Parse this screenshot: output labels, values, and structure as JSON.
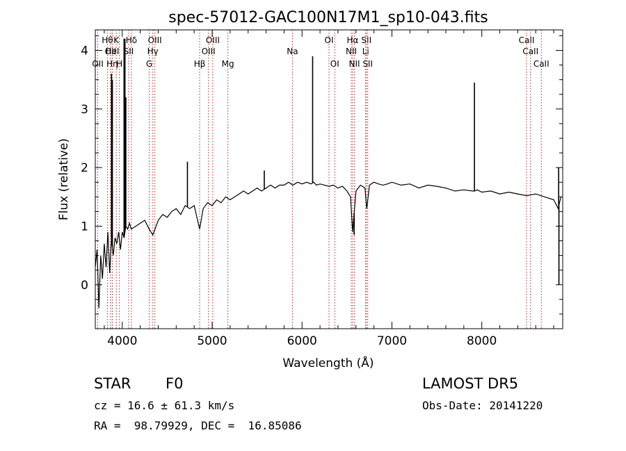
{
  "chart_data": {
    "type": "line",
    "title": "spec-57012-GAC100N17M1_sp10-043.fits",
    "xlabel": "Wavelength (Å)",
    "ylabel": "Flux (relative)",
    "xlim": [
      3700,
      8900
    ],
    "ylim": [
      -0.75,
      4.35
    ],
    "x_ticks": [
      4000,
      5000,
      6000,
      7000,
      8000
    ],
    "y_ticks": [
      0,
      1,
      2,
      3,
      4
    ],
    "grid": false,
    "series": [
      {
        "x": [
          3700,
          3720,
          3740,
          3760,
          3780,
          3800,
          3820,
          3840,
          3860,
          3880,
          3900,
          3920,
          3940,
          3960,
          3980,
          4000,
          4020,
          4040,
          4060,
          4080,
          4100,
          4150,
          4200,
          4250,
          4300,
          4340,
          4400,
          4450,
          4500,
          4550,
          4600,
          4650,
          4700,
          4750,
          4800,
          4861,
          4900,
          4950,
          5000,
          5050,
          5100,
          5150,
          5200,
          5250,
          5300,
          5350,
          5400,
          5450,
          5500,
          5550,
          5600,
          5650,
          5700,
          5750,
          5800,
          5850,
          5900,
          5950,
          6000,
          6050,
          6100,
          6130,
          6160,
          6200,
          6250,
          6300,
          6350,
          6400,
          6450,
          6500,
          6540,
          6563,
          6600,
          6650,
          6700,
          6720,
          6750,
          6800,
          6850,
          6900,
          6950,
          7000,
          7100,
          7200,
          7300,
          7400,
          7500,
          7600,
          7700,
          7800,
          7900,
          7920,
          7950,
          8000,
          8100,
          8200,
          8300,
          8400,
          8500,
          8600,
          8700,
          8800,
          8850,
          8880
        ],
        "y": [
          0.3,
          0.6,
          -0.4,
          0.5,
          0.1,
          0.7,
          0.3,
          0.9,
          0.2,
          0.8,
          0.5,
          0.8,
          0.7,
          0.9,
          0.6,
          0.9,
          0.8,
          1.0,
          0.95,
          1.05,
          0.95,
          1.0,
          1.05,
          1.1,
          0.95,
          0.85,
          1.1,
          1.2,
          1.15,
          1.25,
          1.3,
          1.2,
          1.35,
          1.3,
          1.35,
          0.95,
          1.3,
          1.4,
          1.35,
          1.45,
          1.4,
          1.5,
          1.45,
          1.5,
          1.55,
          1.6,
          1.55,
          1.6,
          1.65,
          1.6,
          1.65,
          1.7,
          1.65,
          1.7,
          1.7,
          1.75,
          1.7,
          1.75,
          1.72,
          1.75,
          1.72,
          1.75,
          1.7,
          1.72,
          1.7,
          1.68,
          1.7,
          1.65,
          1.68,
          1.6,
          1.5,
          0.9,
          1.6,
          1.7,
          1.65,
          1.3,
          1.7,
          1.75,
          1.72,
          1.7,
          1.72,
          1.75,
          1.7,
          1.72,
          1.65,
          1.7,
          1.68,
          1.65,
          1.6,
          1.62,
          1.6,
          1.6,
          1.62,
          1.58,
          1.6,
          1.55,
          1.58,
          1.55,
          1.52,
          1.55,
          1.5,
          1.45,
          1.3,
          1.5
        ],
        "spikes": [
          {
            "x": 3880,
            "y": 3.6
          },
          {
            "x": 3890,
            "y": 3.5
          },
          {
            "x": 4020,
            "y": 4.2
          },
          {
            "x": 4030,
            "y": 4.2
          },
          {
            "x": 4040,
            "y": 3.2
          },
          {
            "x": 4725,
            "y": 2.1
          },
          {
            "x": 5580,
            "y": 1.95
          },
          {
            "x": 6118,
            "y": 3.9
          },
          {
            "x": 6580,
            "y": 0.85
          },
          {
            "x": 7918,
            "y": 3.45
          },
          {
            "x": 8855,
            "y": 2.0
          },
          {
            "x": 8858,
            "y": 0.0
          }
        ]
      }
    ],
    "lines": [
      {
        "wl": 3835,
        "label": "Hθ",
        "row": 0
      },
      {
        "wl": 3869,
        "label": "OII",
        "row": 1
      },
      {
        "wl": 3727,
        "label": "OII",
        "row": 2
      },
      {
        "wl": 3889,
        "label": "Hη",
        "row": 2
      },
      {
        "wl": 3934,
        "label": "K",
        "row": 0
      },
      {
        "wl": 3968,
        "label": "H",
        "row": 2
      },
      {
        "wl": 3889,
        "label": "HeI",
        "row": 1
      },
      {
        "wl": 4071,
        "label": "SII",
        "row": 1
      },
      {
        "wl": 4102,
        "label": "Hδ",
        "row": 0
      },
      {
        "wl": 4300,
        "label": "G",
        "row": 2
      },
      {
        "wl": 4340,
        "label": "Hγ",
        "row": 1
      },
      {
        "wl": 4363,
        "label": "OIII",
        "row": 0
      },
      {
        "wl": 4861,
        "label": "Hβ",
        "row": 2
      },
      {
        "wl": 4959,
        "label": "OIII",
        "row": 1
      },
      {
        "wl": 5007,
        "label": "OIII",
        "row": 0
      },
      {
        "wl": 5175,
        "label": "Mg",
        "row": 2
      },
      {
        "wl": 5893,
        "label": "Na",
        "row": 1
      },
      {
        "wl": 6300,
        "label": "OI",
        "row": 0
      },
      {
        "wl": 6364,
        "label": "OI",
        "row": 2
      },
      {
        "wl": 6548,
        "label": "NII",
        "row": 1
      },
      {
        "wl": 6563,
        "label": "Hα",
        "row": 0
      },
      {
        "wl": 6583,
        "label": "NII",
        "row": 2
      },
      {
        "wl": 6708,
        "label": "Li",
        "row": 1
      },
      {
        "wl": 6716,
        "label": "SII",
        "row": 0
      },
      {
        "wl": 6731,
        "label": "SII",
        "row": 2
      },
      {
        "wl": 8498,
        "label": "CaII",
        "row": 0
      },
      {
        "wl": 8542,
        "label": "CaII",
        "row": 1
      },
      {
        "wl": 8662,
        "label": "CaII",
        "row": 2
      }
    ]
  },
  "info": {
    "star_type": "STAR",
    "subclass": "F0",
    "survey": "LAMOST DR5",
    "cz": "cz = 16.6 ± 61.3 km/s",
    "obs_date": "Obs-Date: 20141220",
    "coords": "RA =  98.79929, DEC =  16.85086"
  },
  "colors": {
    "spectrum": "#000000",
    "line_marker": "#b22222"
  }
}
